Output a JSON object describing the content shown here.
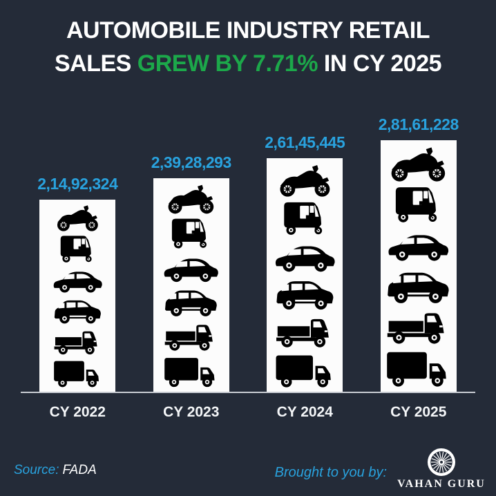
{
  "title": {
    "line1": "AUTOMOBILE INDUSTRY RETAIL",
    "line2_prefix": "SALES ",
    "line2_highlight": "GREW BY 7.71%",
    "line2_suffix": " IN CY 2025"
  },
  "chart_data": {
    "type": "bar",
    "title": "Automobile industry retail sales by calendar year",
    "categories": [
      "CY 2022",
      "CY 2023",
      "CY 2024",
      "CY 2025"
    ],
    "values": [
      21492324,
      23928293,
      26145445,
      28161228
    ],
    "value_labels": [
      "2,14,92,324",
      "2,39,28,293",
      "2,61,45,445",
      "2,81,61,228"
    ],
    "ylim": [
      0,
      28161228
    ],
    "legend": "none",
    "grid": "off",
    "bar_fill": "#FCFCFC",
    "icon_color": "#000000",
    "value_label_color": "#29A2DE",
    "baseline_color": "#C9CDD3",
    "icon_stack": [
      "motorcycle",
      "auto-rickshaw",
      "hatchback-car",
      "suv-car",
      "pickup-truck",
      "box-truck"
    ]
  },
  "footer": {
    "source_label": "Source:",
    "source_value": "FADA",
    "brought_by": "Brought to you by:",
    "brand_name": "VAHAN GURU",
    "brand_logo_icon": "spoked-wheel-icon"
  },
  "colors": {
    "background": "#242B38",
    "title_text": "#FFFFFF",
    "highlight_green": "#1CA84A",
    "accent_blue": "#29A2DE"
  }
}
